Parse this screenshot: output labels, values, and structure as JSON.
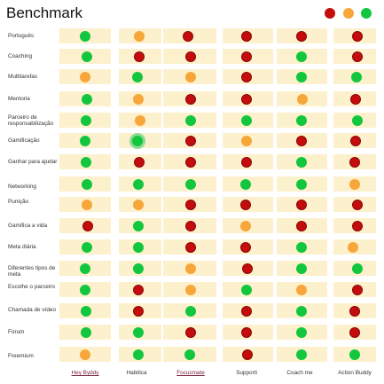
{
  "title": "Benchmark",
  "colors": {
    "green": "#12c73e",
    "orange": "#f7a63a",
    "red": "#c40c0c",
    "cell": "#fdf0cc"
  },
  "legend": [
    "red",
    "orange",
    "green"
  ],
  "columns": [
    {
      "label": "Hey Byddy",
      "link": true
    },
    {
      "label": "Habitica",
      "link": false
    },
    {
      "label": "Focusmate",
      "link": true
    },
    {
      "label": "Supporti",
      "link": false
    },
    {
      "label": "Coach me",
      "link": false
    },
    {
      "label": "Action Buddy",
      "link": false
    }
  ],
  "rows": [
    {
      "label": "Português",
      "values": [
        "g",
        "o",
        "r",
        "r",
        "r",
        "r"
      ]
    },
    {
      "label": "Coaching",
      "values": [
        "g",
        "r",
        "r",
        "r",
        "g",
        "r"
      ]
    },
    {
      "label": "Multitarefas",
      "values": [
        "o",
        "g",
        "o",
        "r",
        "g",
        "g"
      ]
    },
    {
      "label": "Mentoria",
      "values": [
        "g",
        "o",
        "r",
        "r",
        "o",
        "r"
      ]
    },
    {
      "label": "Parceiro de responsabilização",
      "values": [
        "g",
        "o",
        "g",
        "g",
        "g",
        "g"
      ]
    },
    {
      "label": "Gamificação",
      "values": [
        "g",
        "g",
        "r",
        "o",
        "r",
        "r"
      ],
      "highlight": 1
    },
    {
      "label": "Ganhar para ajudar",
      "values": [
        "g",
        "r",
        "r",
        "r",
        "g",
        "r"
      ]
    },
    {
      "label": "Networking",
      "values": [
        "g",
        "g",
        "g",
        "g",
        "g",
        "o"
      ]
    },
    {
      "label": "Punição",
      "values": [
        "o",
        "o",
        "r",
        "r",
        "r",
        "r"
      ]
    },
    {
      "label": "Gamifica a vida",
      "values": [
        "r",
        "g",
        "r",
        "o",
        "r",
        "r"
      ]
    },
    {
      "label": "Meta diária",
      "values": [
        "g",
        "g",
        "r",
        "r",
        "g",
        "o"
      ]
    },
    {
      "label": "Diferentes tipos de meta",
      "values": [
        "g",
        "g",
        "o",
        "r",
        "g",
        "g"
      ]
    },
    {
      "label": "Escolhe o parceiro",
      "values": [
        "g",
        "r",
        "o",
        "g",
        "o",
        "r"
      ]
    },
    {
      "label": "Chamada de vídeo",
      "values": [
        "g",
        "r",
        "g",
        "r",
        "g",
        "r"
      ]
    },
    {
      "label": "Fórum",
      "values": [
        "g",
        "g",
        "r",
        "r",
        "g",
        "r"
      ]
    },
    {
      "label": "Freemium",
      "values": [
        "o",
        "g",
        "g",
        "r",
        "g",
        "g"
      ]
    }
  ]
}
